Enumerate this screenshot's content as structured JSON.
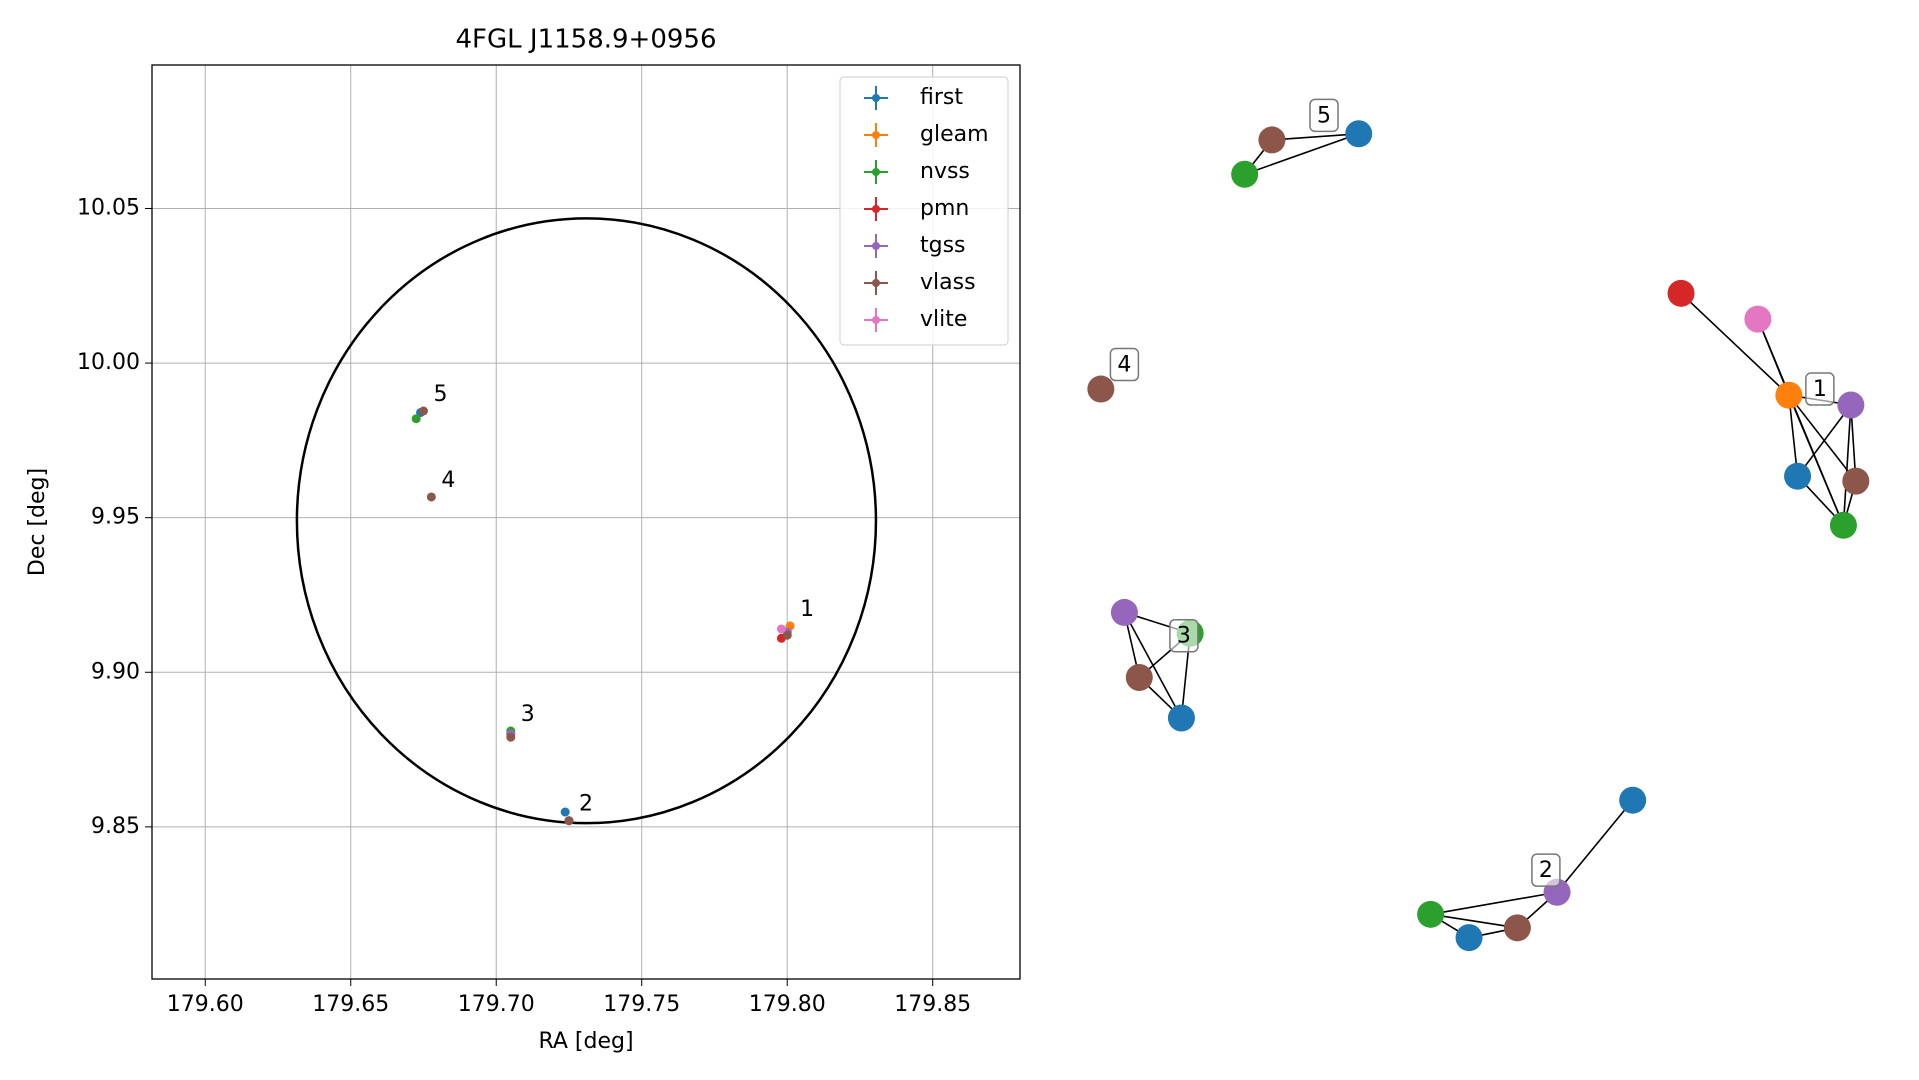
{
  "chart_data": {
    "type": "scatter",
    "title": "4FGL J1158.9+0956",
    "x_label": "RA [deg]",
    "y_label": "Dec [deg]",
    "xlim": [
      179.5817,
      179.88
    ],
    "ylim": [
      9.8008,
      10.0964
    ],
    "xticks": [
      {
        "value": 179.6,
        "label": "179.60"
      },
      {
        "value": 179.65,
        "label": "179.65"
      },
      {
        "value": 179.7,
        "label": "179.70"
      },
      {
        "value": 179.75,
        "label": "179.75"
      },
      {
        "value": 179.8,
        "label": "179.80"
      },
      {
        "value": 179.85,
        "label": "179.85"
      }
    ],
    "yticks": [
      {
        "value": 9.85,
        "label": "9.85"
      },
      {
        "value": 9.9,
        "label": "9.90"
      },
      {
        "value": 9.95,
        "label": "9.95"
      },
      {
        "value": 10.0,
        "label": "10.00"
      },
      {
        "value": 10.05,
        "label": "10.05"
      }
    ],
    "grid": true,
    "legend": "upper right",
    "series": [
      {
        "name": "first",
        "color": "#1f77b4",
        "x": [
          179.8,
          179.7237,
          179.705,
          179.674
        ],
        "values": [
          9.913,
          9.8548,
          9.88,
          9.984
        ]
      },
      {
        "name": "gleam",
        "color": "#ff7f0e",
        "x": [
          179.801
        ],
        "values": [
          9.915
        ]
      },
      {
        "name": "nvss",
        "color": "#2ca02c",
        "x": [
          179.8,
          179.725,
          179.705,
          179.6725
        ],
        "values": [
          9.912,
          9.852,
          9.881,
          9.982
        ]
      },
      {
        "name": "pmn",
        "color": "#d62728",
        "x": [
          179.798
        ],
        "values": [
          9.911
        ]
      },
      {
        "name": "tgss",
        "color": "#9467bd",
        "x": [
          179.8,
          179.725,
          179.705
        ],
        "values": [
          9.913,
          9.852,
          9.88
        ]
      },
      {
        "name": "vlass",
        "color": "#8c564b",
        "x": [
          179.8,
          179.725,
          179.705,
          179.6777,
          179.675
        ],
        "values": [
          9.912,
          9.852,
          9.879,
          9.9567,
          9.9845
        ]
      },
      {
        "name": "vlite",
        "color": "#e377c2",
        "x": [
          179.798
        ],
        "values": [
          9.914
        ]
      }
    ],
    "annotations": [
      {
        "text": "1",
        "x": 179.801,
        "y": 9.915
      },
      {
        "text": "2",
        "x": 179.725,
        "y": 9.852
      },
      {
        "text": "3",
        "x": 179.705,
        "y": 9.881
      },
      {
        "text": "4",
        "x": 179.6777,
        "y": 9.9567
      },
      {
        "text": "5",
        "x": 179.675,
        "y": 9.9845
      }
    ],
    "ellipse": {
      "x": 179.731,
      "y": 9.949,
      "rx": 0.0995,
      "ry": 0.0978
    }
  },
  "graph": {
    "groups": [
      {
        "label": "1",
        "nodes": [
          3,
          6,
          1,
          4,
          0,
          5,
          2
        ],
        "edges": [
          [
            0,
            2
          ],
          [
            1,
            2
          ],
          [
            2,
            3
          ],
          [
            2,
            4
          ],
          [
            2,
            5
          ],
          [
            2,
            6
          ],
          [
            1,
            6
          ],
          [
            3,
            4
          ],
          [
            3,
            5
          ],
          [
            3,
            6
          ],
          [
            4,
            6
          ],
          [
            5,
            6
          ]
        ]
      },
      {
        "label": "2",
        "nodes": [
          2,
          0,
          5,
          4,
          0
        ],
        "edges": [
          [
            0,
            2
          ],
          [
            0,
            3
          ],
          [
            1,
            2
          ],
          [
            2,
            3
          ],
          [
            3,
            4
          ],
          [
            0,
            1
          ]
        ]
      },
      {
        "label": "3",
        "nodes": [
          4,
          2,
          5,
          0
        ],
        "edges": [
          [
            0,
            1
          ],
          [
            0,
            3
          ],
          [
            1,
            2
          ],
          [
            1,
            3
          ],
          [
            2,
            3
          ],
          [
            0,
            2
          ]
        ]
      },
      {
        "label": "4",
        "nodes": [
          5
        ],
        "edges": []
      },
      {
        "label": "5",
        "nodes": [
          5,
          0,
          2
        ],
        "edges": [
          [
            0,
            1
          ],
          [
            2,
            1
          ],
          [
            2,
            0
          ]
        ]
      }
    ]
  }
}
